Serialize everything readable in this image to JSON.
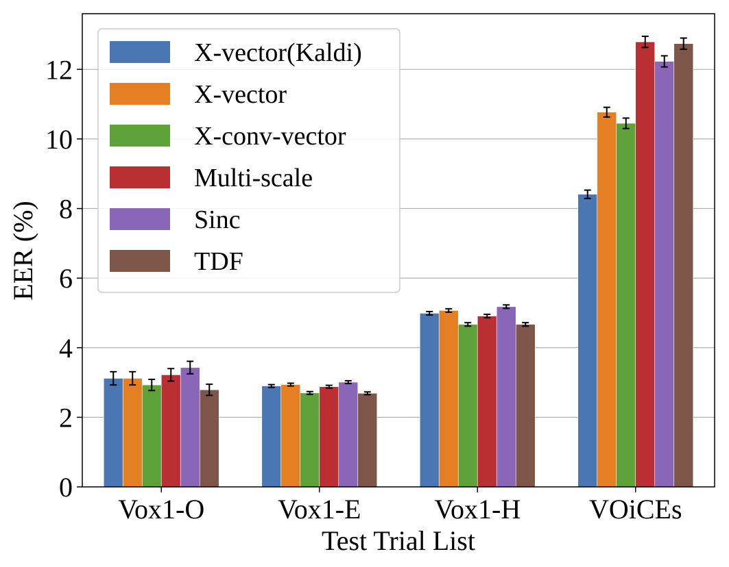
{
  "chart_data": {
    "type": "bar",
    "xlabel": "Test Trial List",
    "ylabel": "EER (%)",
    "ylim": [
      0,
      13.6
    ],
    "yticks": [
      0,
      2,
      4,
      6,
      8,
      10,
      12
    ],
    "grid": "horizontal",
    "legend_position": "top-left",
    "categories": [
      "Vox1-O",
      "Vox1-E",
      "Vox1-H",
      "VOiCEs"
    ],
    "series": [
      {
        "name": "X-vector(Kaldi)",
        "color": "#4a77b4",
        "values": [
          3.12,
          2.9,
          4.99,
          8.41
        ],
        "errors": [
          0.19,
          0.04,
          0.05,
          0.12
        ]
      },
      {
        "name": "X-vector",
        "color": "#e47f23",
        "values": [
          3.12,
          2.94,
          5.07,
          10.77
        ],
        "errors": [
          0.19,
          0.04,
          0.05,
          0.14
        ]
      },
      {
        "name": "X-conv-vector",
        "color": "#60a23a",
        "values": [
          2.93,
          2.7,
          4.67,
          10.45
        ],
        "errors": [
          0.16,
          0.04,
          0.05,
          0.15
        ]
      },
      {
        "name": "Multi-scale",
        "color": "#b92f32",
        "values": [
          3.22,
          2.88,
          4.91,
          12.79
        ],
        "errors": [
          0.18,
          0.04,
          0.05,
          0.16
        ]
      },
      {
        "name": "Sinc",
        "color": "#8a66b8",
        "values": [
          3.43,
          3.01,
          5.18,
          12.23
        ],
        "errors": [
          0.18,
          0.04,
          0.05,
          0.16
        ]
      },
      {
        "name": "TDF",
        "color": "#7d5549",
        "values": [
          2.79,
          2.69,
          4.67,
          12.74
        ],
        "errors": [
          0.16,
          0.04,
          0.05,
          0.16
        ]
      }
    ]
  }
}
